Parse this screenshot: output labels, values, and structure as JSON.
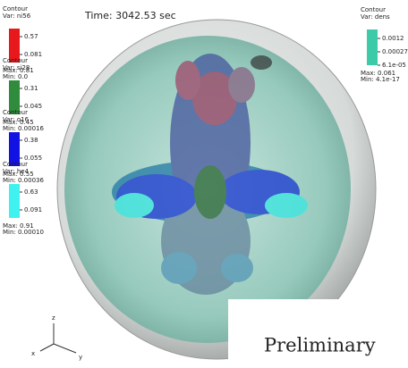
{
  "time": "Time: 3042.53 sec",
  "legends": [
    {
      "title": "Contour",
      "var": "Var: ni56",
      "color": "#e8191c",
      "labels": [
        "0.57",
        "0.081"
      ],
      "max": "Max: 0.81",
      "min": "Min: 0.0"
    },
    {
      "title": "Contour",
      "var": "Var: si28",
      "color": "#2f8c3c",
      "labels": [
        "0.31",
        "0.045"
      ],
      "max": "Max: 0.45",
      "min": "Min: 0.00016"
    },
    {
      "title": "Contour",
      "var": "Var: o16",
      "color": "#1212e2",
      "labels": [
        "0.38",
        "0.055"
      ],
      "max": "Max: 0.55",
      "min": "Min: 0.00036"
    },
    {
      "title": "Contour",
      "var": "Var: he4",
      "color": "#3ff2ef",
      "labels": [
        "0.63",
        "0.091"
      ],
      "max": "Max: 0.91",
      "min": "Min: 0.00010"
    }
  ],
  "right_legend": {
    "title": "Contour",
    "var": "Var: dens",
    "color": "#3ccaa8",
    "labels": [
      "0.0012",
      "0.00027",
      "6.1e-05"
    ],
    "max": "Max: 0.061",
    "min": "Min: 4.1e-17"
  },
  "axes": {
    "z": "z",
    "x": "x",
    "y": "y"
  },
  "watermark": "Preliminary"
}
